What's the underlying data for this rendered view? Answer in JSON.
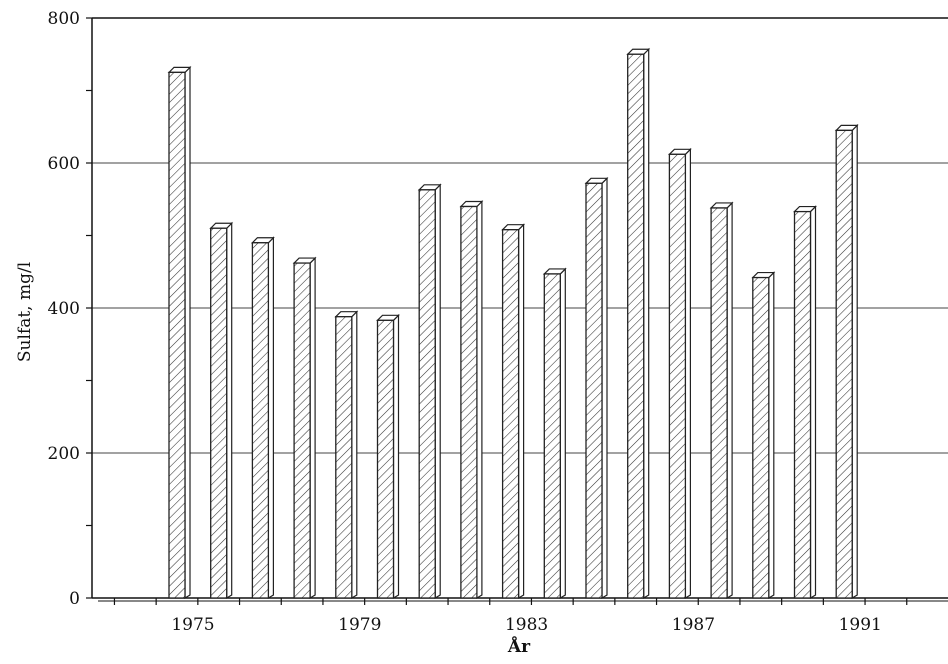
{
  "chart_data": {
    "type": "bar",
    "title": "",
    "xlabel": "År",
    "ylabel": "Sulfat,  mg/l",
    "categories": [
      "1975",
      "1976",
      "1977",
      "1978",
      "1979",
      "1980",
      "1981",
      "1982",
      "1983",
      "1984",
      "1985",
      "1986",
      "1987",
      "1988",
      "1989",
      "1990",
      "1991"
    ],
    "values": [
      725,
      510,
      490,
      462,
      388,
      383,
      563,
      540,
      508,
      447,
      572,
      750,
      612,
      538,
      442,
      533,
      645
    ],
    "ylim": [
      0,
      800
    ],
    "y_ticks": [
      0,
      200,
      400,
      600,
      800
    ],
    "y_tick_labels": [
      "0",
      "200",
      "400",
      "600",
      "800"
    ],
    "x_tick_labels": [
      "1975",
      "1979",
      "1983",
      "1987",
      "1991"
    ],
    "grid": true,
    "legend": "none",
    "bar_fill": "#ffffff",
    "bar_stroke": "#222222"
  }
}
